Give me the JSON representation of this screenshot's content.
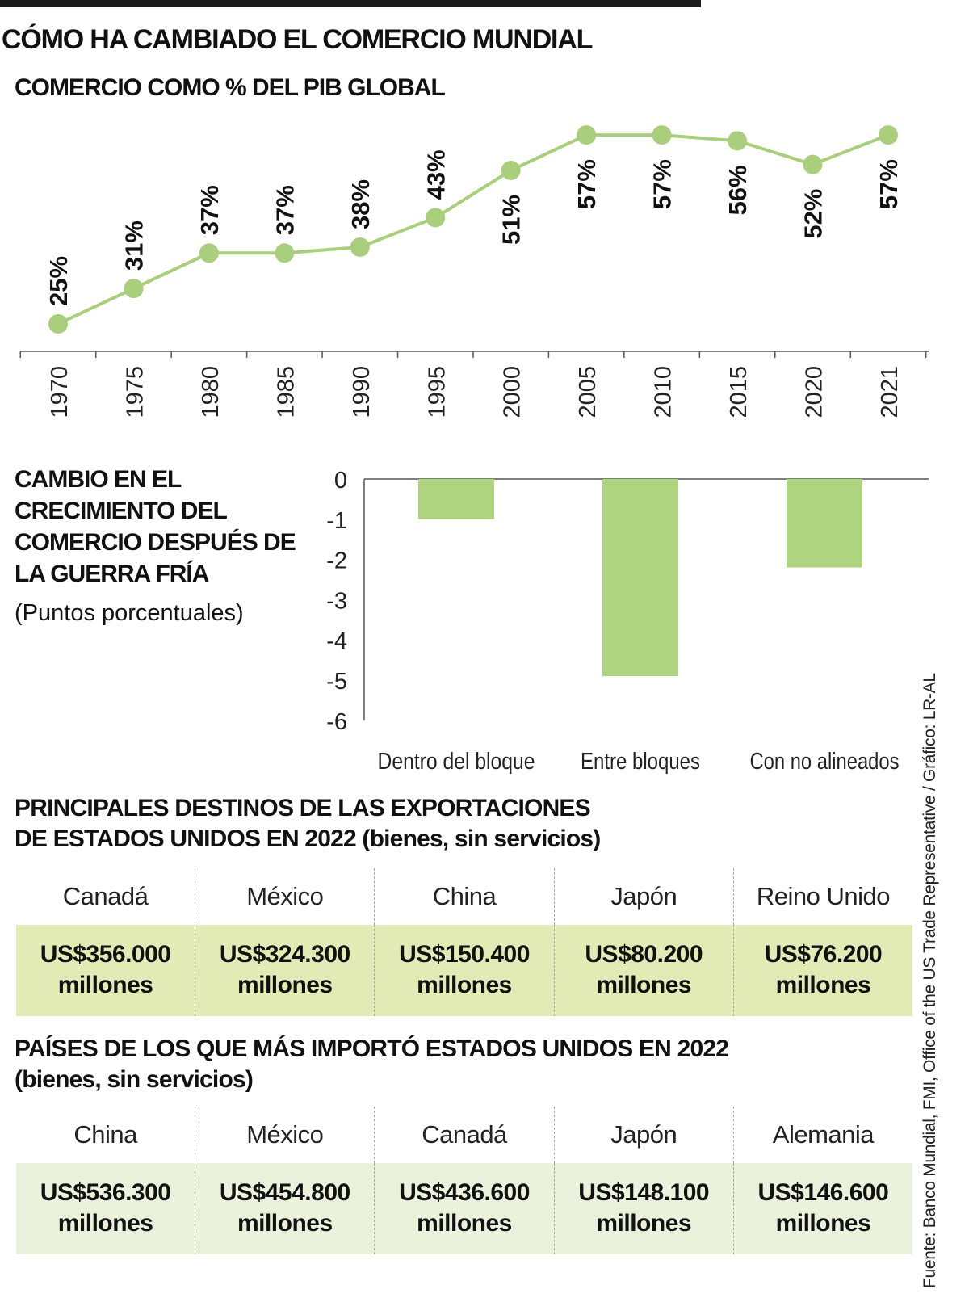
{
  "title": "CÓMO HA CAMBIADO EL COMERCIO MUNDIAL",
  "chart_data": [
    {
      "type": "line",
      "title": "COMERCIO COMO % DEL PIB GLOBAL",
      "categories": [
        "1970",
        "1975",
        "1980",
        "1985",
        "1990",
        "1995",
        "2000",
        "2005",
        "2010",
        "2015",
        "2020",
        "2021"
      ],
      "values": [
        25,
        31,
        37,
        37,
        38,
        43,
        51,
        57,
        57,
        56,
        52,
        57
      ],
      "data_labels": [
        "25%",
        "31%",
        "37%",
        "37%",
        "38%",
        "43%",
        "51%",
        "57%",
        "57%",
        "56%",
        "52%",
        "57%"
      ],
      "color": "#a9cf7c",
      "grid": false
    },
    {
      "type": "bar",
      "title": "CAMBIO EN EL CRECIMIENTO DEL COMERCIO DESPUÉS DE LA GUERRA FRÍA",
      "subtitle": "(Puntos porcentuales)",
      "categories": [
        "Dentro del bloque",
        "Entre bloques",
        "Con no alineados"
      ],
      "values": [
        -1.0,
        -4.9,
        -2.2
      ],
      "ylim": [
        -6,
        0
      ],
      "yticks": [
        "0",
        "-1",
        "-2",
        "-3",
        "-4",
        "-5",
        "-6"
      ],
      "color": "#aed47f",
      "grid": false
    },
    {
      "type": "table",
      "title": "PRINCIPALES DESTINOS DE LAS EXPORTACIONES DE ESTADOS UNIDOS EN 2022 (bienes, sin servicios)",
      "title_lines": [
        "PRINCIPALES DESTINOS DE LAS EXPORTACIONES",
        "DE ESTADOS UNIDOS EN 2022 (bienes, sin servicios)"
      ],
      "columns": [
        "Canadá",
        "México",
        "China",
        "Japón",
        "Reino Unido"
      ],
      "values": [
        {
          "amount": "US$356.000",
          "unit": "millones"
        },
        {
          "amount": "US$324.300",
          "unit": "millones"
        },
        {
          "amount": "US$150.400",
          "unit": "millones"
        },
        {
          "amount": "US$80.200",
          "unit": "millones"
        },
        {
          "amount": "US$76.200",
          "unit": "millones"
        }
      ],
      "fill": "#e2ebb6"
    },
    {
      "type": "table",
      "title": "PAÍSES DE LOS QUE MÁS IMPORTÓ ESTADOS UNIDOS EN 2022 (bienes, sin servicios)",
      "title_lines": [
        "PAÍSES DE LOS QUE MÁS IMPORTÓ ESTADOS UNIDOS EN 2022",
        "(bienes, sin servicios)"
      ],
      "columns": [
        "China",
        "México",
        "Canadá",
        "Japón",
        "Alemania"
      ],
      "values": [
        {
          "amount": "US$536.300",
          "unit": "millones"
        },
        {
          "amount": "US$454.800",
          "unit": "millones"
        },
        {
          "amount": "US$436.600",
          "unit": "millones"
        },
        {
          "amount": "US$148.100",
          "unit": "millones"
        },
        {
          "amount": "US$146.600",
          "unit": "millones"
        }
      ],
      "fill": "#ebf2dc"
    }
  ],
  "source": "Fuente: Banco Mundial, FMI, Office of the US Trade Representative / Gráfico: LR-AL"
}
